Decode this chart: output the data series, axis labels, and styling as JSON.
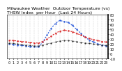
{
  "title": "Milwaukee Weather  Outdoor Temperature (vs)  THSW Index  per Hour  (Last 24 Hours)",
  "hours": [
    0,
    1,
    2,
    3,
    4,
    5,
    6,
    7,
    8,
    9,
    10,
    11,
    12,
    13,
    14,
    15,
    16,
    17,
    18,
    19,
    20,
    21,
    22,
    23
  ],
  "outdoor_temp": [
    28,
    27,
    26,
    25,
    24,
    23,
    22,
    22,
    25,
    30,
    36,
    42,
    46,
    48,
    47,
    45,
    42,
    38,
    34,
    31,
    29,
    27,
    25,
    24
  ],
  "thsw_index": [
    20,
    19,
    18,
    17,
    16,
    15,
    14,
    14,
    24,
    38,
    52,
    62,
    68,
    66,
    64,
    58,
    50,
    42,
    34,
    28,
    24,
    20,
    18,
    16
  ],
  "dew_point": [
    22,
    21,
    20,
    19,
    18,
    17,
    16,
    16,
    18,
    20,
    22,
    24,
    26,
    27,
    27,
    26,
    25,
    23,
    22,
    21,
    20,
    19,
    18,
    17
  ],
  "outdoor_temp_color": "#dd2222",
  "thsw_color": "#2255dd",
  "dew_point_color": "#111111",
  "bg_color": "#ffffff",
  "plot_bg": "#ffffff",
  "ylim": [
    -10,
    80
  ],
  "yticks": [
    -10,
    0,
    10,
    20,
    30,
    40,
    50,
    60,
    70,
    80
  ],
  "grid_color": "#aaaaaa",
  "title_fontsize": 4.5,
  "tick_fontsize": 3.5
}
